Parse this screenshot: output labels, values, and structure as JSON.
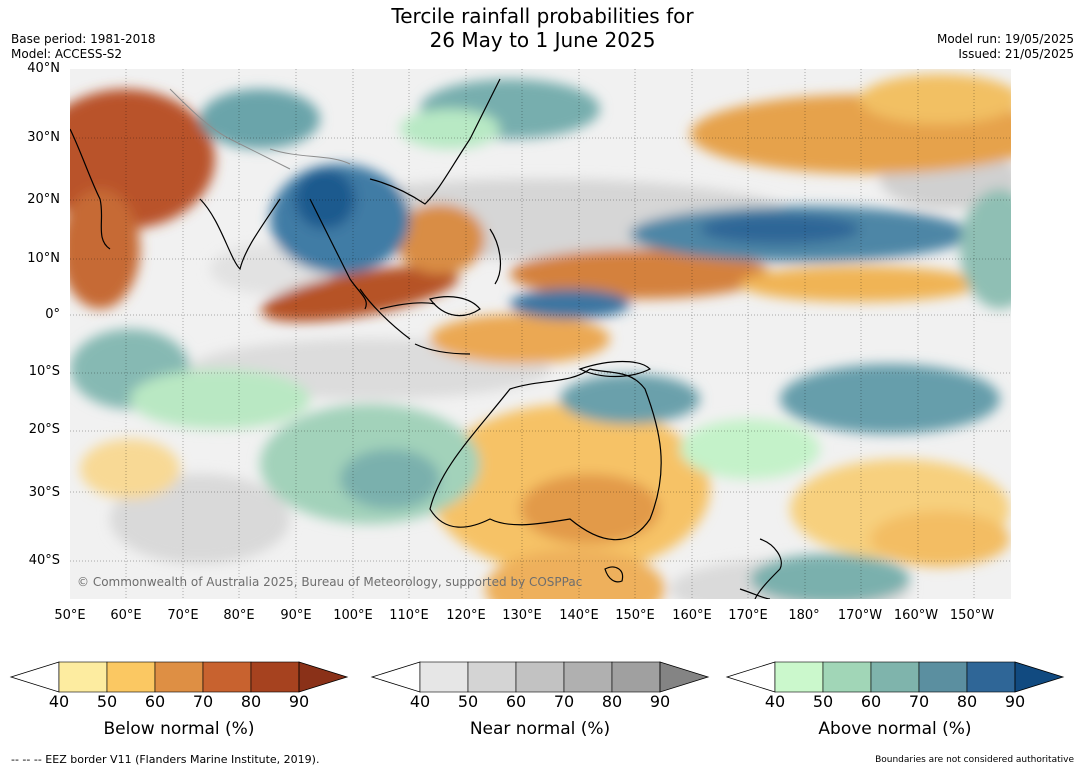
{
  "header": {
    "title_line1": "Tercile rainfall probabilities for",
    "title_line2": "26 May to 1 June 2025",
    "base_period": "Base period: 1981-2018",
    "model": "Model: ACCESS-S2",
    "model_run": "Model run: 19/05/2025",
    "issued": "Issued: 21/05/2025"
  },
  "map": {
    "copyright": "© Commonwealth of Australia 2025, Bureau of Meteorology, supported by COSPPac",
    "lat_labels": [
      "40°N",
      "30°N",
      "20°N",
      "10°N",
      "0°",
      "10°S",
      "20°S",
      "30°S",
      "40°S"
    ],
    "lon_labels": [
      "50°E",
      "60°E",
      "70°E",
      "80°E",
      "90°E",
      "100°E",
      "110°E",
      "120°E",
      "130°E",
      "140°E",
      "150°E",
      "160°E",
      "170°E",
      "180°",
      "170°W",
      "160°W",
      "150°W"
    ],
    "colors": {
      "ocean_base": "#ffffff",
      "coast": "#000000",
      "border": "#8c8c8c"
    }
  },
  "colorbars": [
    {
      "title": "Below normal (%)",
      "ticks": [
        "40",
        "50",
        "60",
        "70",
        "80",
        "90"
      ],
      "colors": [
        "#ffffff",
        "#fdeca0",
        "#fbc862",
        "#de8f44",
        "#c8622f",
        "#a6421f",
        "#8a3118"
      ]
    },
    {
      "title": "Near normal (%)",
      "ticks": [
        "40",
        "50",
        "60",
        "70",
        "80",
        "90"
      ],
      "colors": [
        "#ffffff",
        "#e6e6e6",
        "#d4d4d4",
        "#c2c2c2",
        "#b0b0b0",
        "#a0a0a0",
        "#848484"
      ]
    },
    {
      "title": "Above normal (%)",
      "ticks": [
        "40",
        "50",
        "60",
        "70",
        "80",
        "90"
      ],
      "colors": [
        "#ffffff",
        "#cbf8cc",
        "#a1d6b7",
        "#7fb4ac",
        "#5b8fa0",
        "#2f6697",
        "#114a80"
      ]
    }
  ],
  "footer": {
    "eez": "--  --  -- EEZ border V11 (Flanders Marine Institute, 2019).",
    "disclaimer": "Boundaries are not considered authoritative"
  }
}
